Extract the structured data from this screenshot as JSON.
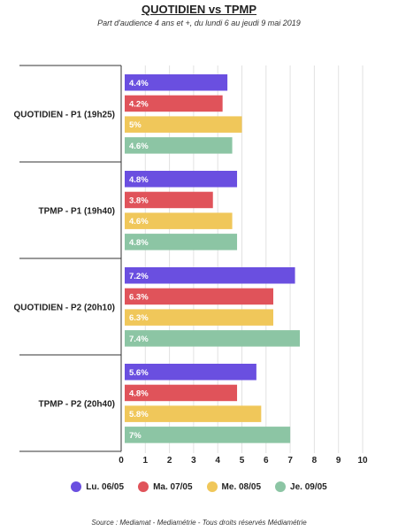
{
  "chart_data": {
    "type": "bar",
    "orientation": "horizontal",
    "title": "QUOTIDIEN vs TPMP",
    "subtitle": "Part d'audience 4 ans et +, du lundi 6 au jeudi 9 mai 2019",
    "categories": [
      "QUOTIDIEN - P1 (19h25)",
      "TPMP - P1 (19h40)",
      "QUOTIDIEN - P2 (20h10)",
      "TPMP - P2 (20h40)"
    ],
    "series": [
      {
        "name": "Lu. 06/05",
        "color": "#6a4fe0",
        "values": [
          4.4,
          4.8,
          7.2,
          5.6
        ],
        "labels": [
          "4.4%",
          "4.8%",
          "7.2%",
          "5.6%"
        ]
      },
      {
        "name": "Ma. 07/05",
        "color": "#e0535a",
        "values": [
          4.2,
          3.8,
          6.3,
          4.8
        ],
        "labels": [
          "4.2%",
          "3.8%",
          "6.3%",
          "4.8%"
        ]
      },
      {
        "name": "Me. 08/05",
        "color": "#f0c75a",
        "values": [
          5,
          4.6,
          6.3,
          5.8
        ],
        "labels": [
          "5%",
          "4.6%",
          "6.3%",
          "5.8%"
        ]
      },
      {
        "name": "Je. 09/05",
        "color": "#8cc5a4",
        "values": [
          4.6,
          4.8,
          7.4,
          7
        ],
        "labels": [
          "4.6%",
          "4.8%",
          "7.4%",
          "7%"
        ]
      }
    ],
    "xlim": [
      0,
      10
    ],
    "xticks": [
      "0",
      "1",
      "2",
      "3",
      "4",
      "5",
      "6",
      "7",
      "8",
      "9",
      "10"
    ],
    "grid": true,
    "legend_position": "bottom"
  },
  "source": "Source : Mediamat - Mediamétrie - Tous droits réservés Médiamétrie"
}
